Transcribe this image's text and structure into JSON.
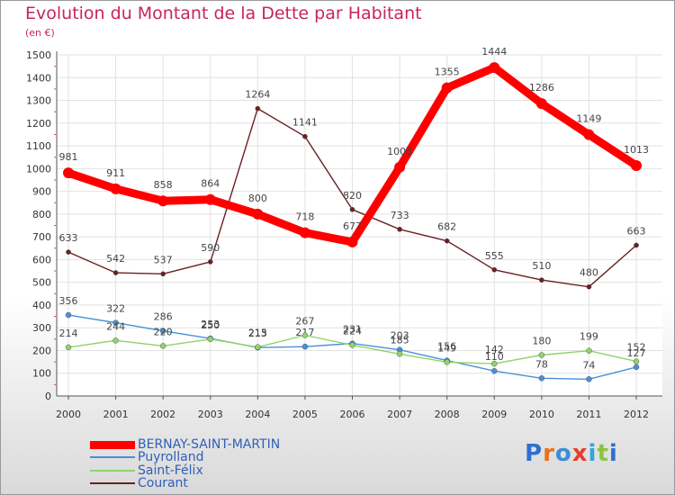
{
  "title": "Evolution du Montant de la Dette par Habitant",
  "subtitle": "(en €)",
  "chart_data": {
    "type": "line",
    "title": "Evolution du Montant de la Dette par Habitant",
    "subtitle": "(en €)",
    "x": [
      "2000",
      "2001",
      "2002",
      "2003",
      "2004",
      "2005",
      "2006",
      "2007",
      "2008",
      "2009",
      "2010",
      "2011",
      "2012"
    ],
    "ylim": [
      0,
      1500
    ],
    "yticks": [
      0,
      100,
      200,
      300,
      400,
      500,
      600,
      700,
      800,
      900,
      1000,
      1100,
      1200,
      1300,
      1400,
      1500
    ],
    "grid": true,
    "legend_position": "bottom-left",
    "series": [
      {
        "name": "BERNAY-SAINT-MARTIN",
        "color": "#ff0000",
        "values": [
          981,
          911,
          858,
          864,
          800,
          718,
          677,
          1006,
          1355,
          1444,
          1286,
          1149,
          1013
        ]
      },
      {
        "name": "Puyrolland",
        "color": "#4a90d9",
        "values": [
          356,
          322,
          286,
          253,
          213,
          217,
          231,
          203,
          156,
          110,
          78,
          74,
          127
        ]
      },
      {
        "name": "Saint-Félix",
        "color": "#8fd468",
        "values": [
          214,
          244,
          220,
          250,
          215,
          267,
          224,
          185,
          149,
          142,
          180,
          199,
          152
        ]
      },
      {
        "name": "Courant",
        "color": "#6b1f24",
        "values": [
          633,
          542,
          537,
          590,
          1264,
          1141,
          820,
          733,
          682,
          555,
          510,
          480,
          663
        ]
      }
    ]
  },
  "logo": {
    "text": "Proxiti",
    "colors": [
      "#2f6fd1",
      "#e8721c",
      "#3a8fd6",
      "#e53e2a",
      "#2fa8d8",
      "#8bc53f",
      "#2f6fd1"
    ]
  }
}
